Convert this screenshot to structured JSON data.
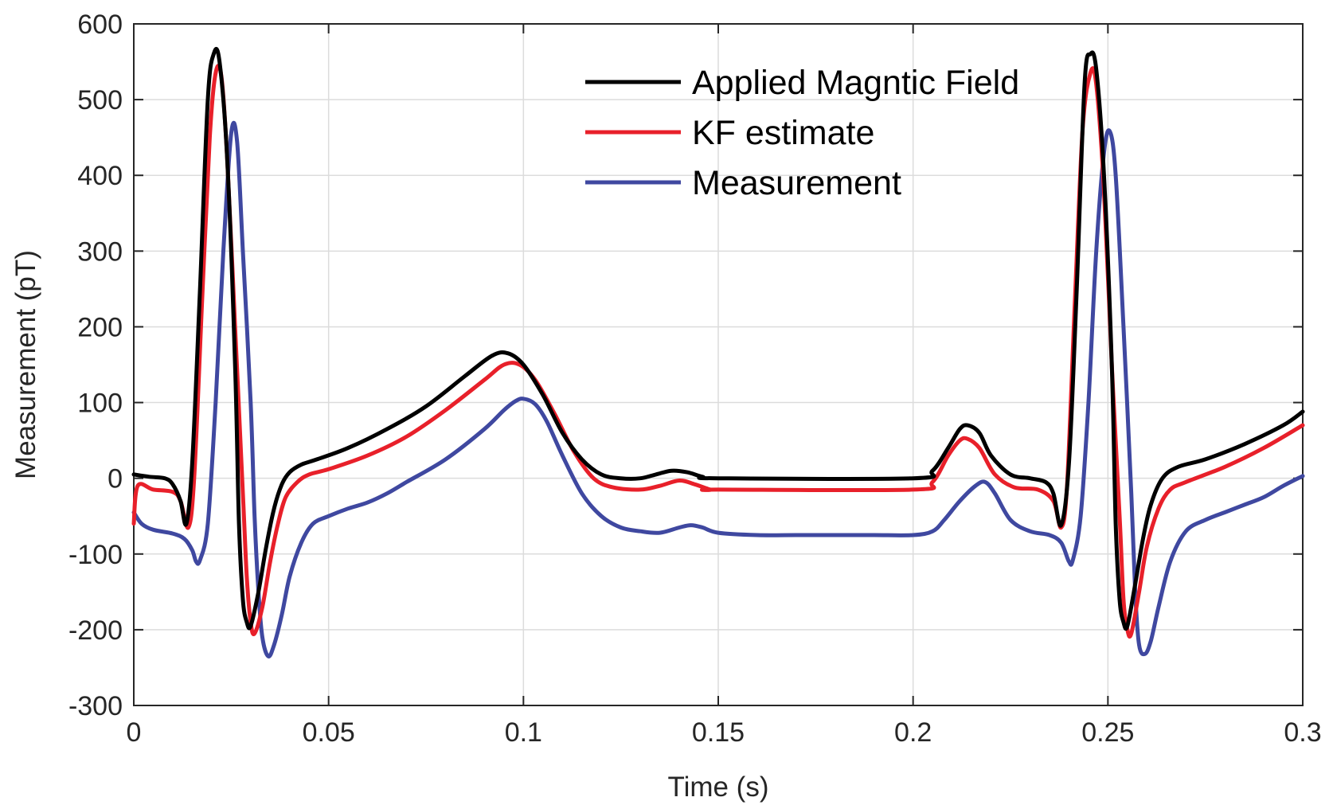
{
  "chart_data": {
    "type": "line",
    "title": "",
    "xlabel": "Time (s)",
    "ylabel": "Measurement (pT)",
    "xlim": [
      0,
      0.3
    ],
    "ylim": [
      -300,
      600
    ],
    "grid": true,
    "legend_position": "top-center",
    "xticks": [
      0,
      0.05,
      0.1,
      0.15,
      0.2,
      0.25,
      0.3
    ],
    "xtick_labels": [
      "0",
      "0.05",
      "0.1",
      "0.15",
      "0.2",
      "0.25",
      "0.3"
    ],
    "yticks": [
      -300,
      -200,
      -100,
      0,
      100,
      200,
      300,
      400,
      500,
      600
    ],
    "ytick_labels": [
      "-300",
      "-200",
      "-100",
      "0",
      "100",
      "200",
      "300",
      "400",
      "500",
      "600"
    ],
    "series": [
      {
        "name": "Applied Magntic Field",
        "color": "#000000",
        "points": [
          [
            0,
            5
          ],
          [
            0.004,
            2
          ],
          [
            0.008,
            0
          ],
          [
            0.01,
            -8
          ],
          [
            0.012,
            -30
          ],
          [
            0.0135,
            -60
          ],
          [
            0.015,
            20
          ],
          [
            0.017,
            250
          ],
          [
            0.019,
            500
          ],
          [
            0.0205,
            560
          ],
          [
            0.022,
            550
          ],
          [
            0.024,
            420
          ],
          [
            0.026,
            150
          ],
          [
            0.027,
            -60
          ],
          [
            0.028,
            -160
          ],
          [
            0.029,
            -190
          ],
          [
            0.03,
            -195
          ],
          [
            0.032,
            -150
          ],
          [
            0.034,
            -90
          ],
          [
            0.036,
            -40
          ],
          [
            0.038,
            -8
          ],
          [
            0.04,
            8
          ],
          [
            0.043,
            18
          ],
          [
            0.047,
            25
          ],
          [
            0.055,
            40
          ],
          [
            0.065,
            65
          ],
          [
            0.075,
            95
          ],
          [
            0.085,
            135
          ],
          [
            0.092,
            162
          ],
          [
            0.096,
            165
          ],
          [
            0.1,
            150
          ],
          [
            0.105,
            110
          ],
          [
            0.11,
            60
          ],
          [
            0.115,
            25
          ],
          [
            0.12,
            5
          ],
          [
            0.125,
            0
          ],
          [
            0.13,
            0
          ],
          [
            0.134,
            5
          ],
          [
            0.138,
            10
          ],
          [
            0.142,
            8
          ],
          [
            0.146,
            2
          ],
          [
            0.15,
            0
          ],
          [
            0.2,
            0
          ],
          [
            0.205,
            10
          ],
          [
            0.209,
            40
          ],
          [
            0.212,
            65
          ],
          [
            0.214,
            70
          ],
          [
            0.217,
            60
          ],
          [
            0.22,
            30
          ],
          [
            0.225,
            5
          ],
          [
            0.23,
            0
          ],
          [
            0.234,
            -5
          ],
          [
            0.236,
            -20
          ],
          [
            0.238,
            -62
          ],
          [
            0.24,
            20
          ],
          [
            0.242,
            250
          ],
          [
            0.244,
            520
          ],
          [
            0.2455,
            560
          ],
          [
            0.247,
            540
          ],
          [
            0.249,
            400
          ],
          [
            0.251,
            150
          ],
          [
            0.252,
            -60
          ],
          [
            0.253,
            -160
          ],
          [
            0.254,
            -190
          ],
          [
            0.255,
            -195
          ],
          [
            0.257,
            -140
          ],
          [
            0.259,
            -80
          ],
          [
            0.261,
            -35
          ],
          [
            0.264,
            0
          ],
          [
            0.268,
            15
          ],
          [
            0.275,
            25
          ],
          [
            0.285,
            45
          ],
          [
            0.295,
            70
          ],
          [
            0.3,
            88
          ]
        ]
      },
      {
        "name": "KF estimate",
        "color": "#e8202a",
        "points": [
          [
            0,
            -60
          ],
          [
            0.001,
            -10
          ],
          [
            0.005,
            -15
          ],
          [
            0.01,
            -18
          ],
          [
            0.012,
            -30
          ],
          [
            0.014,
            -65
          ],
          [
            0.0155,
            0
          ],
          [
            0.0175,
            230
          ],
          [
            0.0195,
            450
          ],
          [
            0.021,
            535
          ],
          [
            0.0225,
            530
          ],
          [
            0.024,
            420
          ],
          [
            0.026,
            200
          ],
          [
            0.028,
            -20
          ],
          [
            0.029,
            -130
          ],
          [
            0.03,
            -190
          ],
          [
            0.031,
            -205
          ],
          [
            0.033,
            -170
          ],
          [
            0.035,
            -110
          ],
          [
            0.037,
            -60
          ],
          [
            0.039,
            -25
          ],
          [
            0.042,
            -5
          ],
          [
            0.045,
            5
          ],
          [
            0.05,
            12
          ],
          [
            0.06,
            30
          ],
          [
            0.07,
            55
          ],
          [
            0.08,
            90
          ],
          [
            0.09,
            130
          ],
          [
            0.095,
            150
          ],
          [
            0.099,
            150
          ],
          [
            0.103,
            130
          ],
          [
            0.108,
            85
          ],
          [
            0.113,
            35
          ],
          [
            0.118,
            0
          ],
          [
            0.123,
            -12
          ],
          [
            0.13,
            -15
          ],
          [
            0.135,
            -10
          ],
          [
            0.14,
            -3
          ],
          [
            0.144,
            -8
          ],
          [
            0.148,
            -15
          ],
          [
            0.15,
            -15
          ],
          [
            0.2,
            -15
          ],
          [
            0.205,
            -5
          ],
          [
            0.209,
            30
          ],
          [
            0.212,
            50
          ],
          [
            0.214,
            52
          ],
          [
            0.217,
            40
          ],
          [
            0.221,
            5
          ],
          [
            0.226,
            -12
          ],
          [
            0.232,
            -15
          ],
          [
            0.236,
            -30
          ],
          [
            0.238,
            -65
          ],
          [
            0.2395,
            -10
          ],
          [
            0.2415,
            230
          ],
          [
            0.2435,
            460
          ],
          [
            0.2455,
            535
          ],
          [
            0.247,
            520
          ],
          [
            0.249,
            380
          ],
          [
            0.251,
            150
          ],
          [
            0.253,
            -50
          ],
          [
            0.254,
            -160
          ],
          [
            0.255,
            -200
          ],
          [
            0.256,
            -205
          ],
          [
            0.258,
            -150
          ],
          [
            0.26,
            -90
          ],
          [
            0.263,
            -40
          ],
          [
            0.266,
            -15
          ],
          [
            0.27,
            -5
          ],
          [
            0.28,
            15
          ],
          [
            0.29,
            40
          ],
          [
            0.3,
            70
          ]
        ]
      },
      {
        "name": "Measurement",
        "color": "#3f48a0",
        "points": [
          [
            0,
            -45
          ],
          [
            0.002,
            -60
          ],
          [
            0.005,
            -68
          ],
          [
            0.01,
            -73
          ],
          [
            0.013,
            -80
          ],
          [
            0.015,
            -95
          ],
          [
            0.016,
            -110
          ],
          [
            0.017,
            -108
          ],
          [
            0.019,
            -60
          ],
          [
            0.021,
            100
          ],
          [
            0.023,
            300
          ],
          [
            0.025,
            455
          ],
          [
            0.0265,
            445
          ],
          [
            0.028,
            300
          ],
          [
            0.03,
            100
          ],
          [
            0.031,
            -50
          ],
          [
            0.032,
            -150
          ],
          [
            0.033,
            -210
          ],
          [
            0.0345,
            -235
          ],
          [
            0.036,
            -220
          ],
          [
            0.038,
            -180
          ],
          [
            0.04,
            -130
          ],
          [
            0.043,
            -85
          ],
          [
            0.046,
            -60
          ],
          [
            0.05,
            -50
          ],
          [
            0.055,
            -40
          ],
          [
            0.06,
            -32
          ],
          [
            0.065,
            -20
          ],
          [
            0.07,
            -5
          ],
          [
            0.08,
            25
          ],
          [
            0.09,
            65
          ],
          [
            0.095,
            90
          ],
          [
            0.098,
            102
          ],
          [
            0.1,
            105
          ],
          [
            0.103,
            98
          ],
          [
            0.106,
            75
          ],
          [
            0.11,
            30
          ],
          [
            0.115,
            -20
          ],
          [
            0.12,
            -50
          ],
          [
            0.125,
            -65
          ],
          [
            0.13,
            -70
          ],
          [
            0.135,
            -72
          ],
          [
            0.14,
            -65
          ],
          [
            0.143,
            -62
          ],
          [
            0.146,
            -65
          ],
          [
            0.15,
            -72
          ],
          [
            0.16,
            -75
          ],
          [
            0.17,
            -75
          ],
          [
            0.18,
            -75
          ],
          [
            0.19,
            -75
          ],
          [
            0.2,
            -75
          ],
          [
            0.205,
            -70
          ],
          [
            0.208,
            -55
          ],
          [
            0.212,
            -30
          ],
          [
            0.216,
            -10
          ],
          [
            0.2185,
            -5
          ],
          [
            0.221,
            -20
          ],
          [
            0.225,
            -55
          ],
          [
            0.23,
            -70
          ],
          [
            0.235,
            -75
          ],
          [
            0.238,
            -85
          ],
          [
            0.24,
            -110
          ],
          [
            0.241,
            -108
          ],
          [
            0.243,
            -50
          ],
          [
            0.245,
            100
          ],
          [
            0.247,
            300
          ],
          [
            0.249,
            430
          ],
          [
            0.2505,
            458
          ],
          [
            0.252,
            400
          ],
          [
            0.254,
            200
          ],
          [
            0.256,
            -20
          ],
          [
            0.257,
            -150
          ],
          [
            0.258,
            -220
          ],
          [
            0.2595,
            -232
          ],
          [
            0.261,
            -215
          ],
          [
            0.263,
            -170
          ],
          [
            0.266,
            -110
          ],
          [
            0.27,
            -70
          ],
          [
            0.275,
            -55
          ],
          [
            0.28,
            -45
          ],
          [
            0.285,
            -35
          ],
          [
            0.29,
            -25
          ],
          [
            0.295,
            -10
          ],
          [
            0.3,
            3
          ]
        ]
      }
    ]
  }
}
